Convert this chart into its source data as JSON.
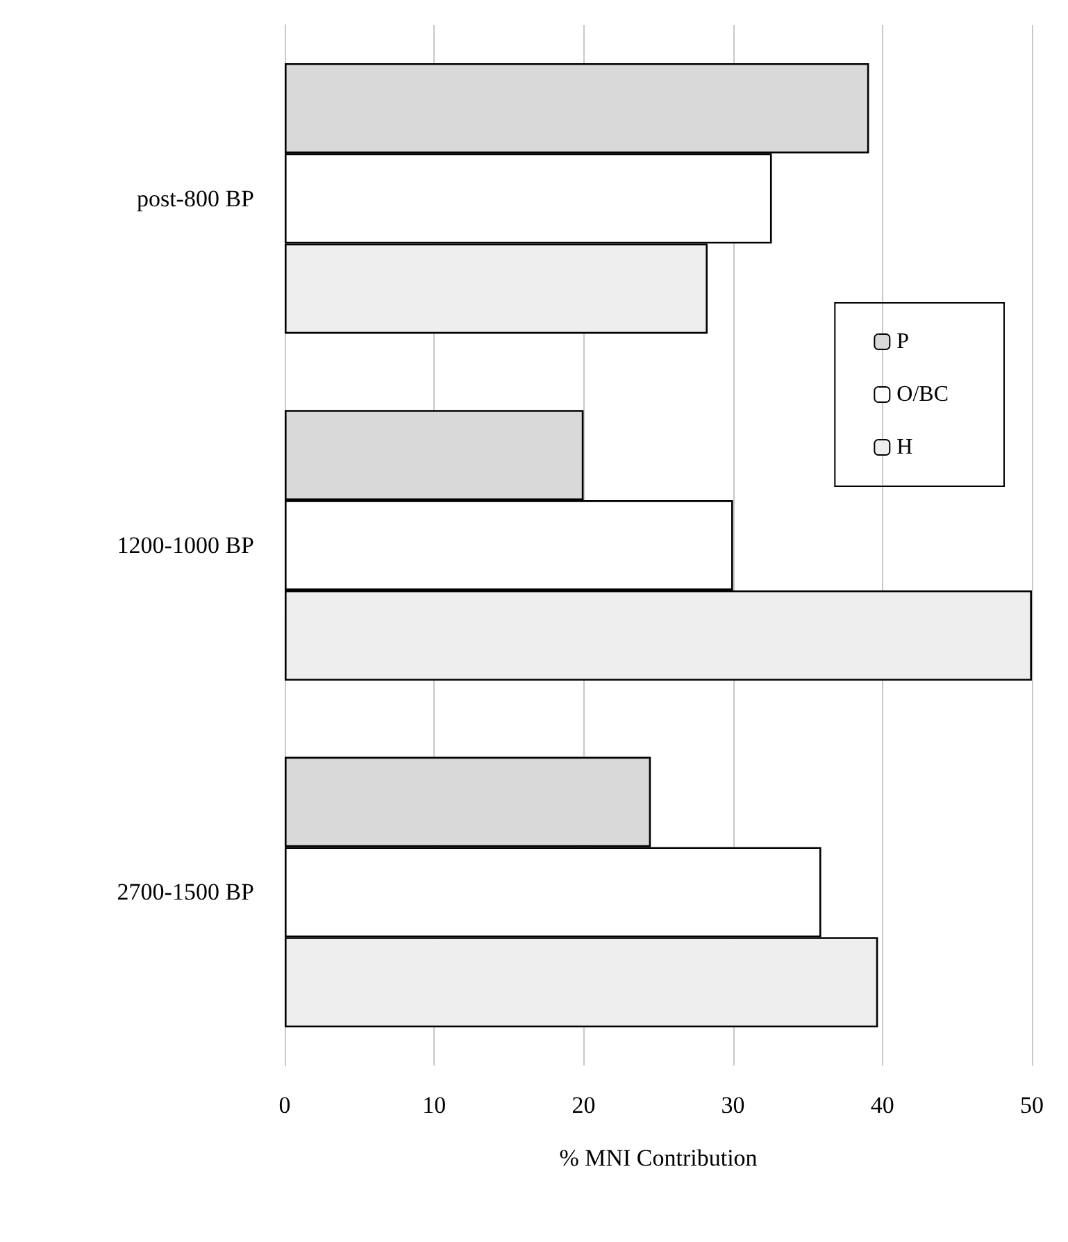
{
  "chart_data": {
    "type": "bar",
    "orientation": "horizontal",
    "xlabel": "% MNI Contribution",
    "categories": [
      "post-800 BP",
      "1200-1000 BP",
      "2700-1500 BP"
    ],
    "series": [
      {
        "name": "P",
        "color": "#d9d9d9",
        "values": [
          39.1,
          20.0,
          24.5
        ]
      },
      {
        "name": "O/BC",
        "color": "#ffffff",
        "values": [
          32.6,
          30.0,
          35.9
        ]
      },
      {
        "name": "H",
        "color": "#eeeeee",
        "values": [
          28.3,
          50.0,
          39.7
        ]
      }
    ],
    "xlim": [
      0,
      50
    ],
    "xticks": [
      0,
      10,
      20,
      30,
      40,
      50
    ],
    "grid": "x",
    "legend": "right"
  }
}
